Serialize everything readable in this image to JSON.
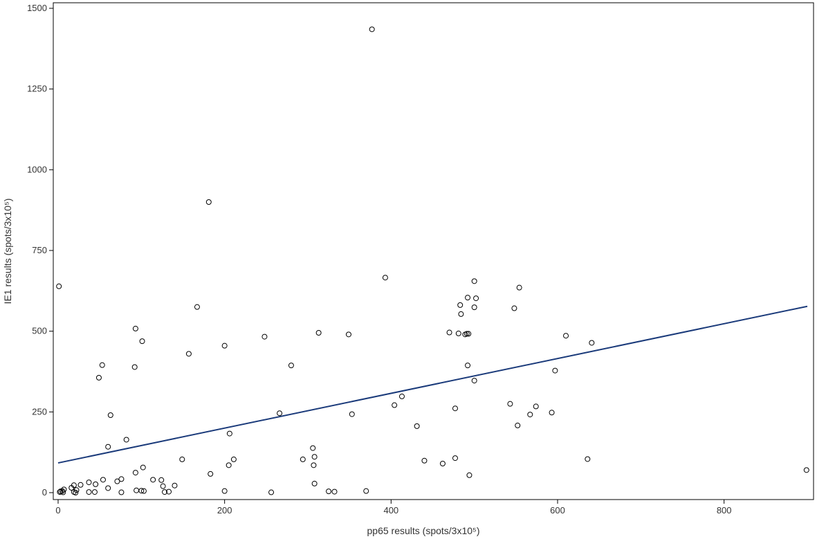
{
  "chart_data": {
    "type": "scatter",
    "xlabel": "pp65 results (spots/3x10⁵)",
    "ylabel": "IE1 results (spots/3x10⁵)",
    "xlim": [
      0,
      900
    ],
    "ylim": [
      0,
      1500
    ],
    "xticks": [
      {
        "value": 0,
        "label": "0"
      },
      {
        "value": 200,
        "label": "200"
      },
      {
        "value": 400,
        "label": "400"
      },
      {
        "value": 600,
        "label": "600"
      },
      {
        "value": 800,
        "label": "800"
      }
    ],
    "yticks": [
      {
        "value": 0,
        "label": "0"
      },
      {
        "value": 250,
        "label": "250"
      },
      {
        "value": 500,
        "label": "500"
      },
      {
        "value": 750,
        "label": "750"
      },
      {
        "value": 1000,
        "label": "1000"
      },
      {
        "value": 1250,
        "label": "1250"
      },
      {
        "value": 1500,
        "label": "1500"
      }
    ],
    "grid": false,
    "colors": {
      "points": "#000000",
      "trend_line": "#1a3a7a",
      "frame": "#000000"
    },
    "trend_line": {
      "x": [
        0,
        900
      ],
      "y": [
        92,
        577
      ]
    },
    "points": [
      {
        "x": 377,
        "y": 1435
      },
      {
        "x": 181,
        "y": 900
      },
      {
        "x": 393,
        "y": 666
      },
      {
        "x": 1,
        "y": 639
      },
      {
        "x": 500,
        "y": 655
      },
      {
        "x": 554,
        "y": 635
      },
      {
        "x": 492,
        "y": 604
      },
      {
        "x": 502,
        "y": 602
      },
      {
        "x": 483,
        "y": 581
      },
      {
        "x": 167,
        "y": 575
      },
      {
        "x": 500,
        "y": 574
      },
      {
        "x": 548,
        "y": 571
      },
      {
        "x": 484,
        "y": 553
      },
      {
        "x": 93,
        "y": 508
      },
      {
        "x": 470,
        "y": 496
      },
      {
        "x": 313,
        "y": 495
      },
      {
        "x": 481,
        "y": 493
      },
      {
        "x": 489,
        "y": 490
      },
      {
        "x": 491,
        "y": 492
      },
      {
        "x": 493,
        "y": 492
      },
      {
        "x": 349,
        "y": 490
      },
      {
        "x": 610,
        "y": 486
      },
      {
        "x": 248,
        "y": 483
      },
      {
        "x": 101,
        "y": 469
      },
      {
        "x": 641,
        "y": 464
      },
      {
        "x": 200,
        "y": 455
      },
      {
        "x": 157,
        "y": 430
      },
      {
        "x": 53,
        "y": 395
      },
      {
        "x": 280,
        "y": 394
      },
      {
        "x": 492,
        "y": 394
      },
      {
        "x": 92,
        "y": 389
      },
      {
        "x": 597,
        "y": 378
      },
      {
        "x": 49,
        "y": 356
      },
      {
        "x": 500,
        "y": 347
      },
      {
        "x": 413,
        "y": 298
      },
      {
        "x": 404,
        "y": 271
      },
      {
        "x": 543,
        "y": 275
      },
      {
        "x": 574,
        "y": 267
      },
      {
        "x": 477,
        "y": 261
      },
      {
        "x": 593,
        "y": 248
      },
      {
        "x": 266,
        "y": 246
      },
      {
        "x": 567,
        "y": 242
      },
      {
        "x": 353,
        "y": 243
      },
      {
        "x": 63,
        "y": 240
      },
      {
        "x": 552,
        "y": 208
      },
      {
        "x": 431,
        "y": 206
      },
      {
        "x": 206,
        "y": 183
      },
      {
        "x": 82,
        "y": 164
      },
      {
        "x": 60,
        "y": 142
      },
      {
        "x": 306,
        "y": 138
      },
      {
        "x": 308,
        "y": 111
      },
      {
        "x": 477,
        "y": 107
      },
      {
        "x": 636,
        "y": 104
      },
      {
        "x": 149,
        "y": 103
      },
      {
        "x": 211,
        "y": 103
      },
      {
        "x": 294,
        "y": 103
      },
      {
        "x": 440,
        "y": 99
      },
      {
        "x": 462,
        "y": 90
      },
      {
        "x": 205,
        "y": 85
      },
      {
        "x": 307,
        "y": 85
      },
      {
        "x": 102,
        "y": 78
      },
      {
        "x": 899,
        "y": 70
      },
      {
        "x": 93,
        "y": 62
      },
      {
        "x": 183,
        "y": 58
      },
      {
        "x": 494,
        "y": 54
      },
      {
        "x": 76,
        "y": 42
      },
      {
        "x": 54,
        "y": 40
      },
      {
        "x": 114,
        "y": 40
      },
      {
        "x": 124,
        "y": 39
      },
      {
        "x": 71,
        "y": 35
      },
      {
        "x": 37,
        "y": 32
      },
      {
        "x": 308,
        "y": 28
      },
      {
        "x": 45,
        "y": 26
      },
      {
        "x": 27,
        "y": 24
      },
      {
        "x": 19,
        "y": 23
      },
      {
        "x": 140,
        "y": 22
      },
      {
        "x": 126,
        "y": 20
      },
      {
        "x": 16,
        "y": 15
      },
      {
        "x": 60,
        "y": 14
      },
      {
        "x": 7,
        "y": 10
      },
      {
        "x": 22,
        "y": 8
      },
      {
        "x": 94,
        "y": 7
      },
      {
        "x": 100,
        "y": 6
      },
      {
        "x": 103,
        "y": 5
      },
      {
        "x": 200,
        "y": 5
      },
      {
        "x": 5,
        "y": 5
      },
      {
        "x": 370,
        "y": 5
      },
      {
        "x": 3,
        "y": 4
      },
      {
        "x": 325,
        "y": 4
      },
      {
        "x": 133,
        "y": 3
      },
      {
        "x": 332,
        "y": 3
      },
      {
        "x": 2,
        "y": 2
      },
      {
        "x": 19,
        "y": 2
      },
      {
        "x": 37,
        "y": 2
      },
      {
        "x": 44,
        "y": 2
      },
      {
        "x": 128,
        "y": 2
      },
      {
        "x": 6,
        "y": 1
      },
      {
        "x": 76,
        "y": 1
      },
      {
        "x": 256,
        "y": 1
      },
      {
        "x": 21,
        "y": 0
      }
    ]
  }
}
